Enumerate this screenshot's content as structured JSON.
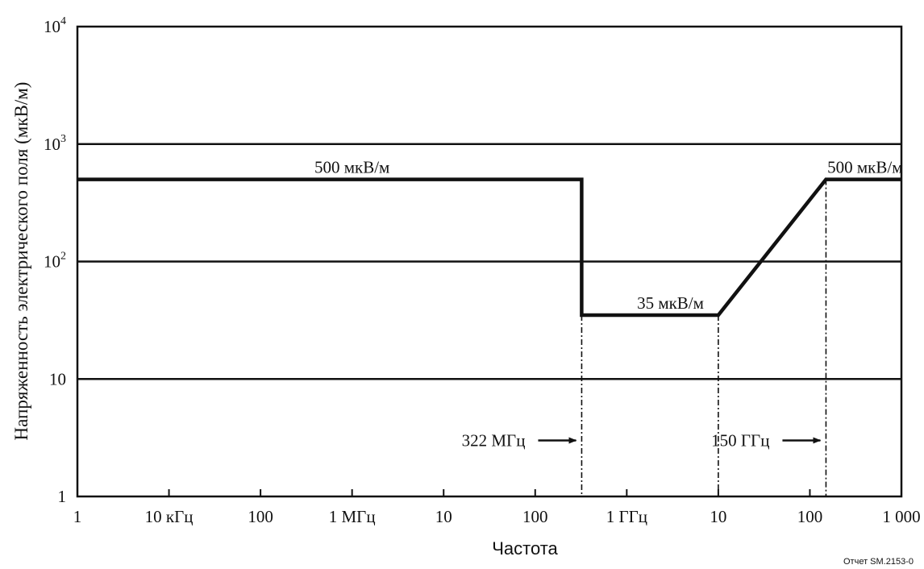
{
  "chart_data": {
    "type": "line",
    "x_scale": "log",
    "y_scale": "log",
    "xlabel": "Частота",
    "ylabel": "Напряженность электрического поля (мкВ/м)",
    "x_ticks": [
      {
        "value": 1000.0,
        "label": "1"
      },
      {
        "value": 10000.0,
        "label": "10 кГц"
      },
      {
        "value": 100000.0,
        "label": "100"
      },
      {
        "value": 1000000.0,
        "label": "1 МГц"
      },
      {
        "value": 10000000.0,
        "label": "10"
      },
      {
        "value": 100000000.0,
        "label": "100"
      },
      {
        "value": 1000000000.0,
        "label": "1 ГГц"
      },
      {
        "value": 10000000000.0,
        "label": "10"
      },
      {
        "value": 100000000000.0,
        "label": "100"
      },
      {
        "value": 1000000000000.0,
        "label": "1 000"
      }
    ],
    "y_ticks": [
      {
        "value": 1,
        "label": "1",
        "sup": ""
      },
      {
        "value": 10,
        "label": "10",
        "sup": ""
      },
      {
        "value": 100,
        "label": "10",
        "sup": "2"
      },
      {
        "value": 1000,
        "label": "10",
        "sup": "3"
      },
      {
        "value": 10000,
        "label": "10",
        "sup": "4"
      }
    ],
    "xlim": [
      1000.0,
      1000000000000.0
    ],
    "ylim": [
      1,
      10000
    ],
    "grid": "horizontal",
    "series": [
      {
        "points": [
          [
            1000.0,
            500
          ],
          [
            322000000.0,
            500
          ],
          [
            322000000.0,
            35
          ],
          [
            10000000000.0,
            35
          ],
          [
            150000000000.0,
            500
          ],
          [
            1000000000000.0,
            500
          ]
        ]
      }
    ],
    "vlines": [
      {
        "x": 322000000.0,
        "y_top": 35
      },
      {
        "x": 10000000000.0,
        "y_top": 35
      },
      {
        "x": 150000000000.0,
        "y_top": 500
      }
    ],
    "annotations": [
      {
        "text": "500 мкВ/м",
        "x": 1000000.0,
        "y": 500
      },
      {
        "text": "500 мкВ/м",
        "x": 400000000000.0,
        "y": 500
      },
      {
        "text": "35 мкВ/м",
        "x": 3000000000.0,
        "y": 35
      },
      {
        "text": "322 МГц",
        "x": 322000000.0,
        "y": 3,
        "arrow": true
      },
      {
        "text": "150 ГГц",
        "x": 150000000000.0,
        "y": 3,
        "arrow": true
      }
    ],
    "source_note": "Отчет SM.2153-0"
  }
}
